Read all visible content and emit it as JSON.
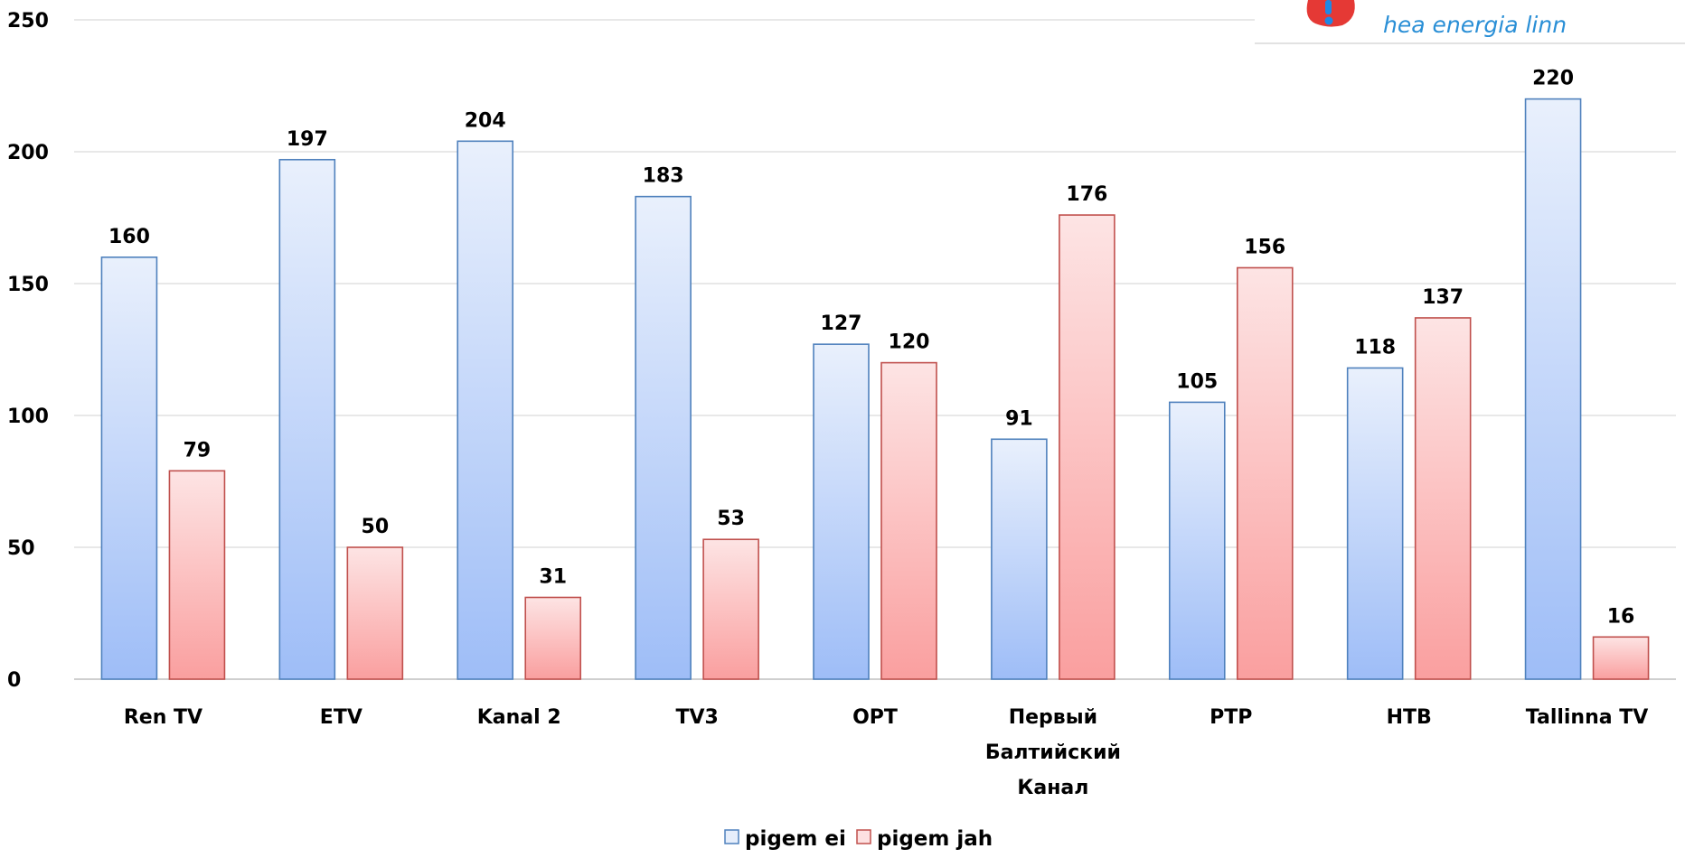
{
  "logo": {
    "tagline": "hea energia linn",
    "colors": {
      "blue": "#1e88e5",
      "red": "#e53935",
      "text": "#2a8fd6"
    }
  },
  "chart_data": {
    "type": "bar",
    "title": "",
    "xlabel": "",
    "ylabel": "",
    "ylim": [
      0,
      250
    ],
    "yticks": [
      0,
      50,
      100,
      150,
      200,
      250
    ],
    "grid": true,
    "legend": "bottom-center",
    "categories": [
      [
        "Ren TV"
      ],
      [
        "ETV"
      ],
      [
        "Kanal 2"
      ],
      [
        "TV3"
      ],
      [
        "ОРТ"
      ],
      [
        "Первый",
        "Балтийский",
        "Канал"
      ],
      [
        "РТР"
      ],
      [
        "НТВ"
      ],
      [
        "Tallinna TV"
      ]
    ],
    "series": [
      {
        "name": "pigem ei",
        "color": "#4f81bd",
        "values": [
          160,
          197,
          204,
          183,
          127,
          91,
          105,
          118,
          220
        ]
      },
      {
        "name": "pigem jah",
        "color": "#c0504d",
        "values": [
          79,
          50,
          31,
          53,
          120,
          176,
          156,
          137,
          16
        ]
      }
    ]
  }
}
